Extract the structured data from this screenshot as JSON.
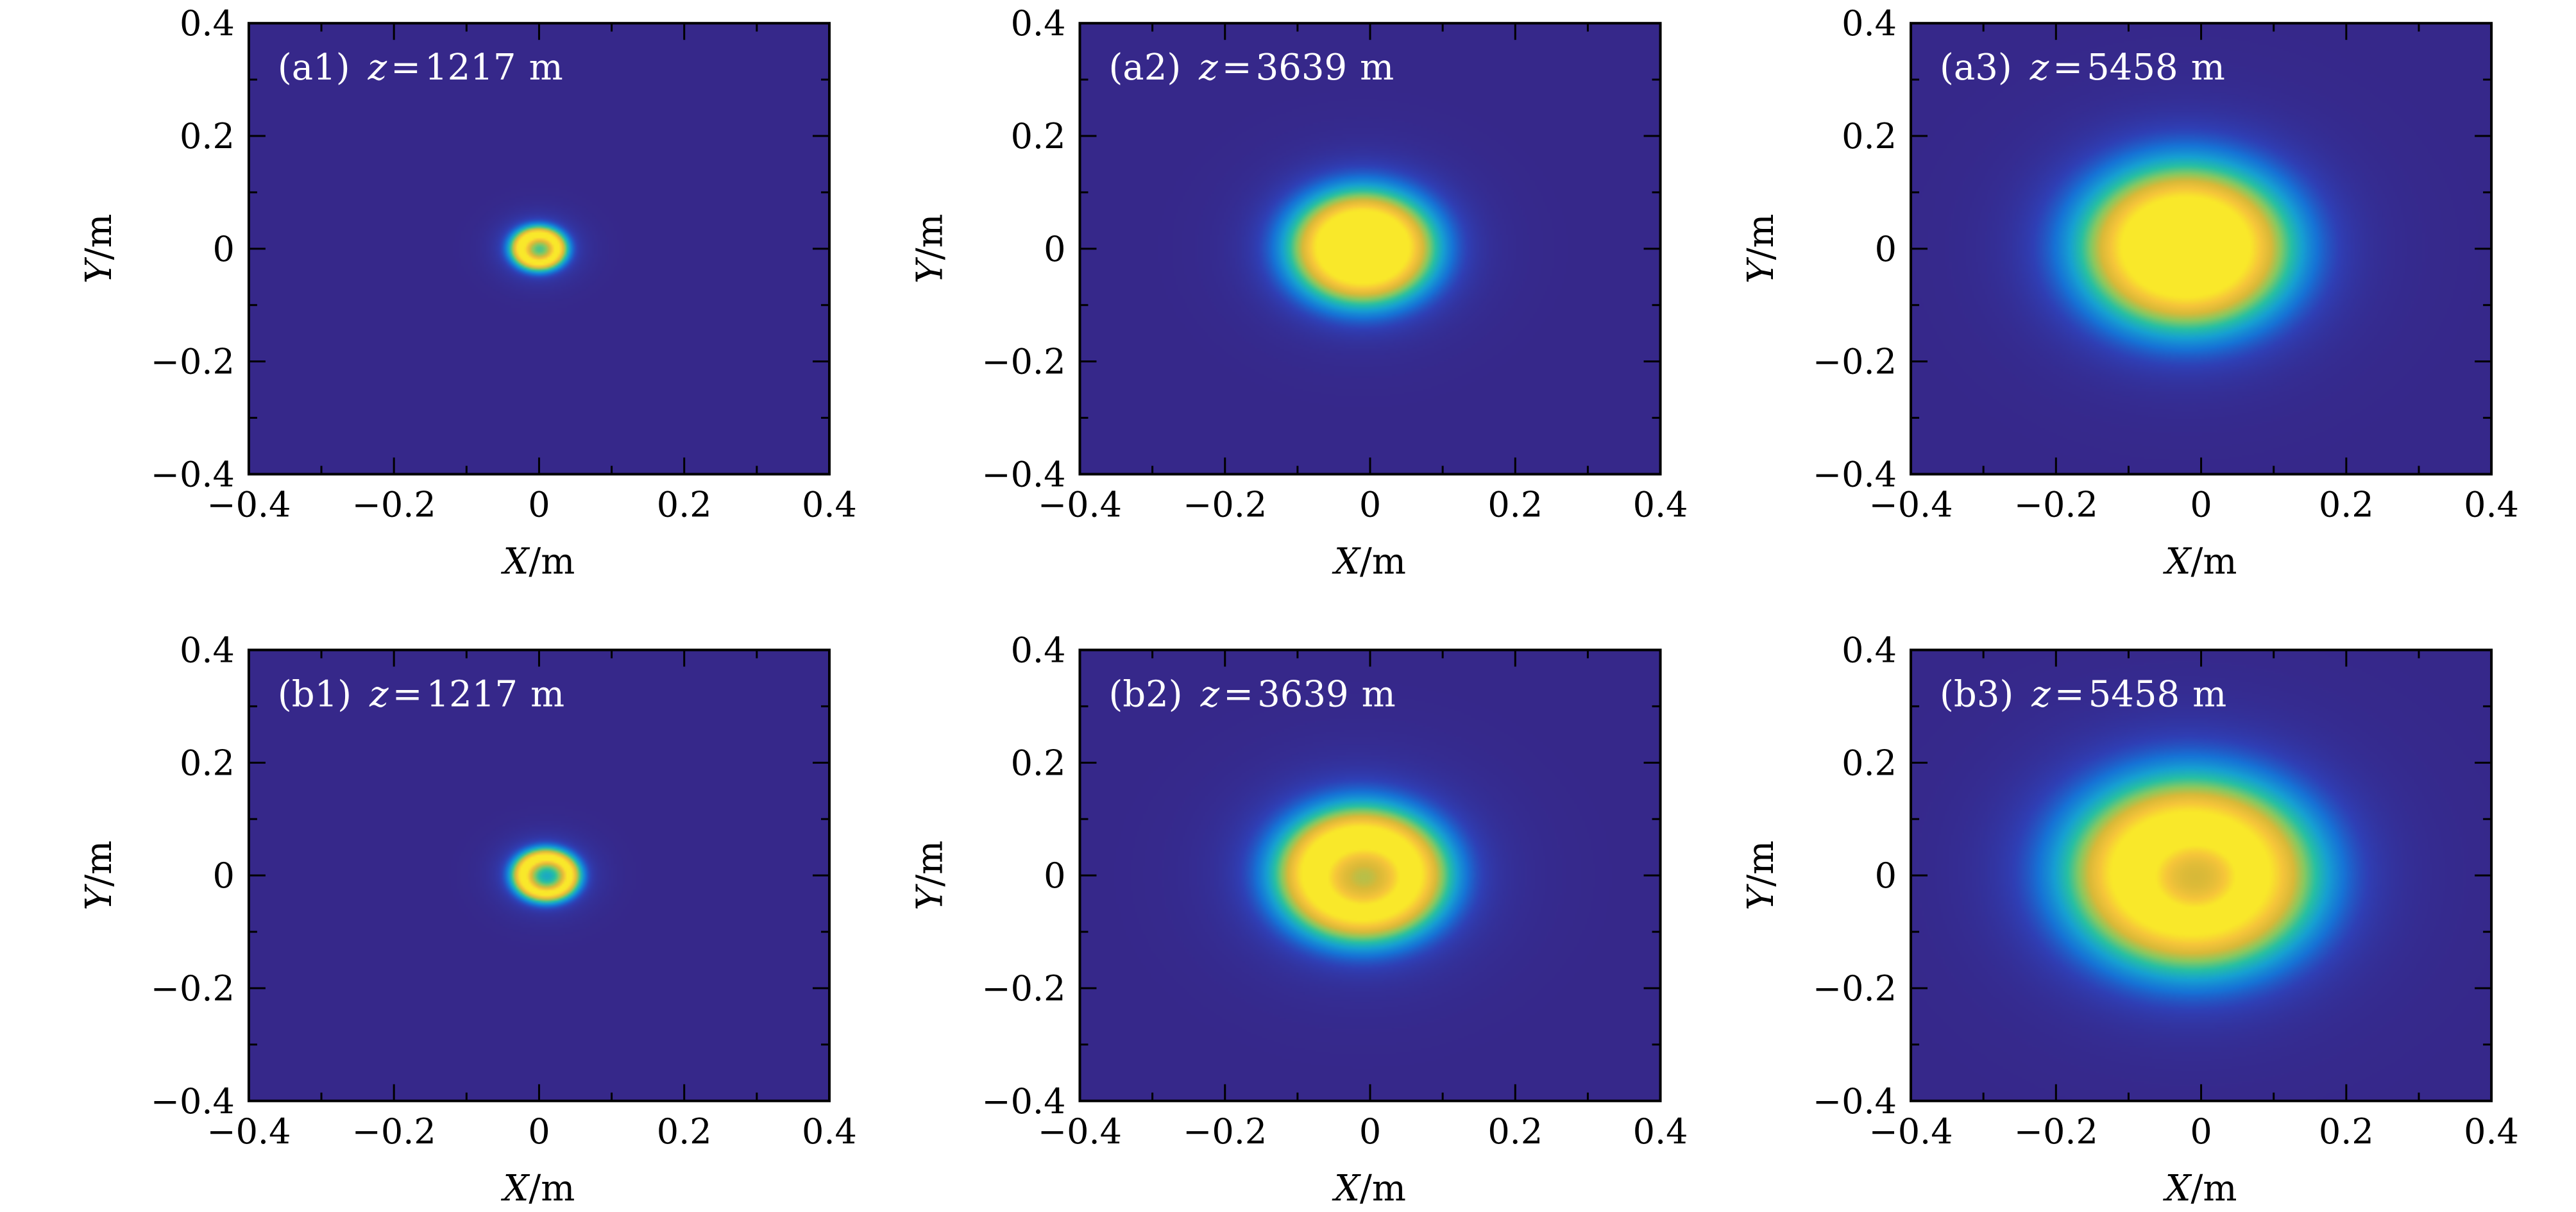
{
  "colors": {
    "background": "#36288a",
    "colormap": [
      "#36288a",
      "#2f3fb5",
      "#1673d6",
      "#16a0d2",
      "#27c0a2",
      "#86c961",
      "#d9b938",
      "#f6c53a",
      "#f9e82a"
    ]
  },
  "chart_data": [
    {
      "type": "heatmap",
      "panel_label": "(a1)",
      "var": "z",
      "eq": "=",
      "value": "1217",
      "unit": "m",
      "xlabel": {
        "var": "X",
        "unit": "/m"
      },
      "ylabel": {
        "var": "Y",
        "unit": "/m"
      },
      "xlim": [
        -0.4,
        0.4
      ],
      "ylim": [
        -0.4,
        0.4
      ],
      "xticks": [
        "−0.4",
        "−0.2",
        "0",
        "0.2",
        "0.4"
      ],
      "yticks": [
        "−0.4",
        "−0.2",
        "0",
        "0.2",
        "0.4"
      ],
      "beam": {
        "cx": 0.0,
        "cy": 0.0,
        "ring_radius": 0.023,
        "ring_width": 0.012,
        "halo_radius": 0.08,
        "center_intensity": 0.28,
        "peak_x": -0.01,
        "peak_y": 0.01
      }
    },
    {
      "type": "heatmap",
      "panel_label": "(a2)",
      "var": "z",
      "eq": "=",
      "value": "3639",
      "unit": "m",
      "xlabel": {
        "var": "X",
        "unit": "/m"
      },
      "ylabel": {
        "var": "Y",
        "unit": "/m"
      },
      "xlim": [
        -0.4,
        0.4
      ],
      "ylim": [
        -0.4,
        0.4
      ],
      "xticks": [
        "−0.4",
        "−0.2",
        "0",
        "0.2",
        "0.4"
      ],
      "yticks": [
        "−0.4",
        "−0.2",
        "0",
        "0.2",
        "0.4"
      ],
      "beam": {
        "cx": -0.01,
        "cy": 0.0,
        "ring_radius": 0.04,
        "ring_width": 0.045,
        "halo_radius": 0.19,
        "center_intensity": 0.78,
        "peak_x": -0.01,
        "peak_y": 0.03
      }
    },
    {
      "type": "heatmap",
      "panel_label": "(a3)",
      "var": "z",
      "eq": "=",
      "value": "5458",
      "unit": "m",
      "xlabel": {
        "var": "X",
        "unit": "/m"
      },
      "ylabel": {
        "var": "Y",
        "unit": "/m"
      },
      "xlim": [
        -0.4,
        0.4
      ],
      "ylim": [
        -0.4,
        0.4
      ],
      "xticks": [
        "−0.4",
        "−0.2",
        "0",
        "0.2",
        "0.4"
      ],
      "yticks": [
        "−0.4",
        "−0.2",
        "0",
        "0.2",
        "0.4"
      ],
      "beam": {
        "cx": -0.02,
        "cy": 0.0,
        "ring_radius": 0.05,
        "ring_width": 0.07,
        "halo_radius": 0.27,
        "center_intensity": 0.88,
        "peak_x": -0.03,
        "peak_y": 0.03
      }
    },
    {
      "type": "heatmap",
      "panel_label": "(b1)",
      "var": "z",
      "eq": "=",
      "value": "1217",
      "unit": "m",
      "xlabel": {
        "var": "X",
        "unit": "/m"
      },
      "ylabel": {
        "var": "Y",
        "unit": "/m"
      },
      "xlim": [
        -0.4,
        0.4
      ],
      "ylim": [
        -0.4,
        0.4
      ],
      "xticks": [
        "−0.4",
        "−0.2",
        "0",
        "0.2",
        "0.4"
      ],
      "yticks": [
        "−0.4",
        "−0.2",
        "0",
        "0.2",
        "0.4"
      ],
      "beam": {
        "cx": 0.01,
        "cy": 0.0,
        "ring_radius": 0.03,
        "ring_width": 0.013,
        "halo_radius": 0.09,
        "center_intensity": 0.12,
        "peak_x": 0.0,
        "peak_y": 0.01
      }
    },
    {
      "type": "heatmap",
      "panel_label": "(b2)",
      "var": "z",
      "eq": "=",
      "value": "3639",
      "unit": "m",
      "xlabel": {
        "var": "X",
        "unit": "/m"
      },
      "ylabel": {
        "var": "Y",
        "unit": "/m"
      },
      "xlim": [
        -0.4,
        0.4
      ],
      "ylim": [
        -0.4,
        0.4
      ],
      "xticks": [
        "−0.4",
        "−0.2",
        "0",
        "0.2",
        "0.4"
      ],
      "yticks": [
        "−0.4",
        "−0.2",
        "0",
        "0.2",
        "0.4"
      ],
      "beam": {
        "cx": -0.01,
        "cy": 0.0,
        "ring_radius": 0.06,
        "ring_width": 0.045,
        "halo_radius": 0.23,
        "center_intensity": 0.45,
        "peak_x": -0.03,
        "peak_y": 0.04
      }
    },
    {
      "type": "heatmap",
      "panel_label": "(b3)",
      "var": "z",
      "eq": "=",
      "value": "5458",
      "unit": "m",
      "xlabel": {
        "var": "X",
        "unit": "/m"
      },
      "ylabel": {
        "var": "Y",
        "unit": "/m"
      },
      "xlim": [
        -0.4,
        0.4
      ],
      "ylim": [
        -0.4,
        0.4
      ],
      "xticks": [
        "−0.4",
        "−0.2",
        "0",
        "0.2",
        "0.4"
      ],
      "yticks": [
        "−0.4",
        "−0.2",
        "0",
        "0.2",
        "0.4"
      ],
      "beam": {
        "cx": -0.01,
        "cy": 0.0,
        "ring_radius": 0.07,
        "ring_width": 0.075,
        "halo_radius": 0.31,
        "center_intensity": 0.5,
        "peak_x": -0.06,
        "peak_y": 0.04
      }
    }
  ]
}
